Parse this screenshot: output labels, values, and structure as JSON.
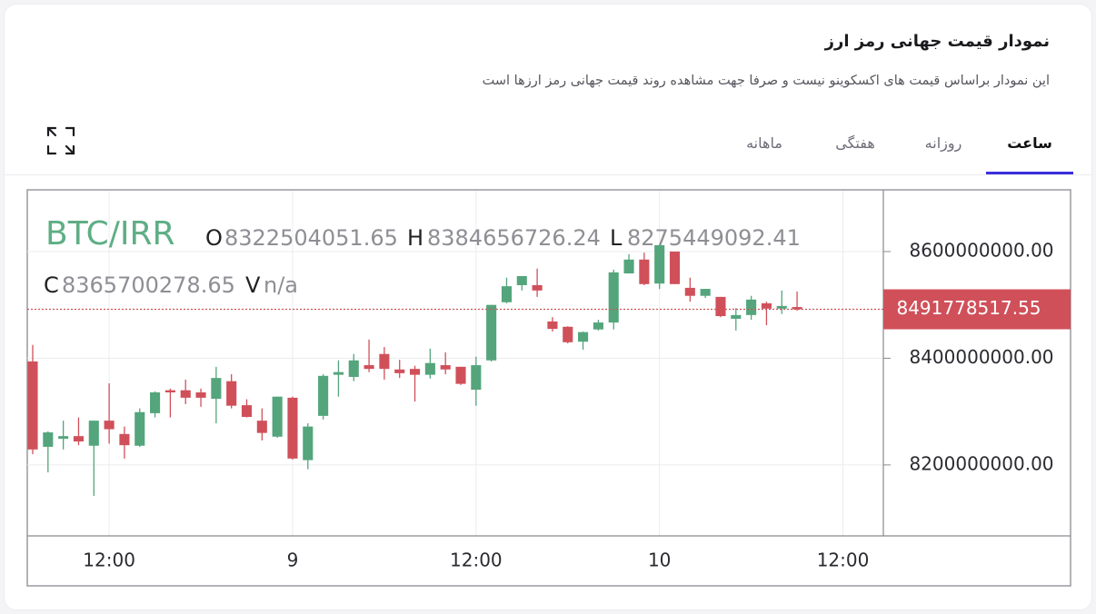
{
  "header": {
    "title": "نمودار قیمت جهانی رمز ارز",
    "subtitle": "این نمودار براساس قیمت های اکسکوینو نیست و صرفا جهت مشاهده روند قیمت جهانی رمز ارزها است"
  },
  "tabs": [
    "ساعت",
    "روزانه",
    "هفتگی",
    "ماهانه"
  ],
  "active_tab": 0,
  "chart_data": {
    "type": "candlestick",
    "symbol": "BTC/IRR",
    "legend": [
      {
        "label": "O",
        "value": 8322504051.65
      },
      {
        "label": "H",
        "value": 8384656726.24
      },
      {
        "label": "L",
        "value": 8275449092.41
      },
      {
        "label": "C",
        "value": 8365700278.65
      },
      {
        "label": "V",
        "value": "n/a"
      }
    ],
    "categories": [
      null,
      null,
      null,
      null,
      null,
      "12:00",
      null,
      null,
      null,
      null,
      null,
      null,
      null,
      null,
      null,
      null,
      null,
      "9",
      null,
      null,
      null,
      null,
      null,
      null,
      null,
      null,
      null,
      null,
      null,
      "12:00",
      null,
      null,
      null,
      null,
      null,
      null,
      null,
      null,
      null,
      null,
      null,
      "10",
      null,
      null,
      null,
      null,
      null,
      null,
      null,
      null,
      null,
      null,
      null,
      "12:00",
      null,
      null
    ],
    "open": [
      8394000000,
      8234000000,
      8249000000,
      8254000000,
      8236000000,
      8283000000,
      8258000000,
      8236000000,
      8297000000,
      8340000000,
      8340000000,
      8336000000,
      8324000000,
      8357000000,
      8312000000,
      8283000000,
      8253000000,
      8326000000,
      8209000000,
      8292000000,
      8369000000,
      8365000000,
      8387000000,
      8408000000,
      8379000000,
      8380000000,
      8369000000,
      8387000000,
      8384000000,
      8341000000,
      8396000000,
      8505000000,
      8537000000,
      8537000000,
      8469000000,
      8459000000,
      8431000000,
      8454000000,
      8467000000,
      8559000000,
      8585000000,
      8540000000,
      8600000000,
      8532000000,
      8517000000,
      8515000000,
      8474000000,
      8481000000,
      8503000000,
      8493000000,
      8496000000,
      null,
      null,
      null,
      null,
      null
    ],
    "high": [
      8425000000,
      8263000000,
      8283000000,
      8289000000,
      8283000000,
      8353000000,
      8272000000,
      8306000000,
      8338000000,
      8343000000,
      8360000000,
      8343000000,
      8384000000,
      8370000000,
      8323000000,
      8306000000,
      8328000000,
      8328000000,
      8278000000,
      8370000000,
      8396000000,
      8408000000,
      8435000000,
      8421000000,
      8397000000,
      8386000000,
      8418000000,
      8411000000,
      8384000000,
      8403000000,
      8500000000,
      8551000000,
      8554000000,
      8568000000,
      8477000000,
      8460000000,
      8450000000,
      8472000000,
      8566000000,
      8595000000,
      8598000000,
      8612000000,
      8600000000,
      8551000000,
      8530000000,
      8515000000,
      8494000000,
      8517000000,
      8506000000,
      8527000000,
      8525000000,
      null,
      null,
      null,
      null,
      null
    ],
    "low": [
      8220000000,
      8186000000,
      8229000000,
      8237000000,
      8142000000,
      8240000000,
      8212000000,
      8234000000,
      8289000000,
      8289000000,
      8314000000,
      8309000000,
      8278000000,
      8306000000,
      8289000000,
      8246000000,
      8251000000,
      8210000000,
      8192000000,
      8285000000,
      8328000000,
      8357000000,
      8374000000,
      8360000000,
      8363000000,
      8319000000,
      8362000000,
      8370000000,
      8350000000,
      8311000000,
      8394000000,
      8503000000,
      8527000000,
      8515000000,
      8450000000,
      8428000000,
      8416000000,
      8452000000,
      8454000000,
      8559000000,
      8537000000,
      8530000000,
      8539000000,
      8506000000,
      8513000000,
      8477000000,
      8452000000,
      8472000000,
      8462000000,
      8483000000,
      8489000000,
      null,
      null,
      null,
      null,
      null
    ],
    "close": [
      8229000000,
      8261000000,
      8254000000,
      8244000000,
      8283000000,
      8267000000,
      8237000000,
      8299000000,
      8336000000,
      8336000000,
      8326000000,
      8326000000,
      8363000000,
      8311000000,
      8290000000,
      8260000000,
      8328000000,
      8212000000,
      8272000000,
      8367000000,
      8374000000,
      8396000000,
      8380000000,
      8380000000,
      8372000000,
      8369000000,
      8391000000,
      8379000000,
      8352000000,
      8387000000,
      8500000000,
      8535000000,
      8554000000,
      8527000000,
      8455000000,
      8430000000,
      8449000000,
      8467000000,
      8561000000,
      8585000000,
      8539000000,
      8612000000,
      8539000000,
      8517000000,
      8530000000,
      8479000000,
      8481000000,
      8510000000,
      8493000000,
      8498000000,
      8491778517.55,
      null,
      null,
      null,
      null,
      null
    ],
    "up_color": "#54a57c",
    "down_color": "#d0505a",
    "last_price": 8491778517.55,
    "ylim": [
      8067000000,
      8714000000
    ],
    "yticks": [
      {
        "value": 8200000000,
        "label": "8200000000.00"
      },
      {
        "value": 8400000000,
        "label": "8400000000.00"
      },
      {
        "value": 8600000000,
        "label": "8600000000.00"
      }
    ],
    "grid": true
  }
}
